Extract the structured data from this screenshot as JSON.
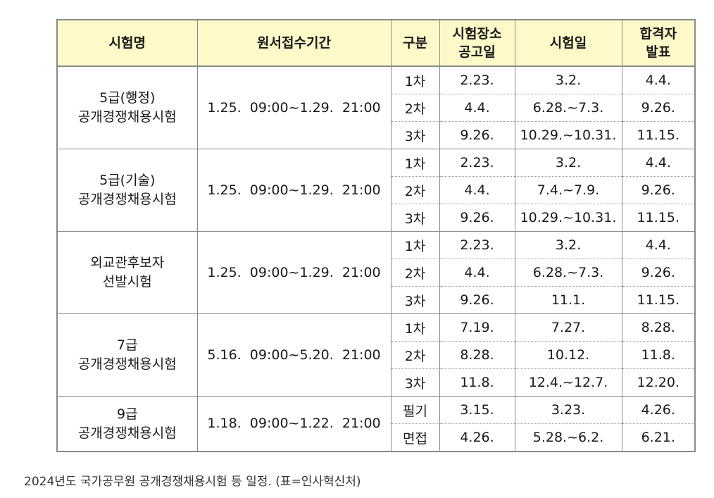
{
  "table": {
    "headers": [
      {
        "line1": "시험명",
        "line2": ""
      },
      {
        "line1": "원서접수기간",
        "line2": ""
      },
      {
        "line1": "구분",
        "line2": ""
      },
      {
        "line1": "시험장소",
        "line2": "공고일"
      },
      {
        "line1": "시험일",
        "line2": ""
      },
      {
        "line1": "합격자",
        "line2": "발표"
      }
    ],
    "groups": [
      {
        "name_line1": "5급(행정)",
        "name_line2": "공개경쟁채용시험",
        "period": "1.25.  09:00~1.29.  21:00",
        "rows": [
          {
            "stage": "1차",
            "notice": "2.23.",
            "exam": "3.2.",
            "result": "4.4."
          },
          {
            "stage": "2차",
            "notice": "4.4.",
            "exam": "6.28.~7.3.",
            "result": "9.26."
          },
          {
            "stage": "3차",
            "notice": "9.26.",
            "exam": "10.29.~10.31.",
            "result": "11.15."
          }
        ]
      },
      {
        "name_line1": "5급(기술)",
        "name_line2": "공개경쟁채용시험",
        "period": "1.25.  09:00~1.29.  21:00",
        "rows": [
          {
            "stage": "1차",
            "notice": "2.23.",
            "exam": "3.2.",
            "result": "4.4."
          },
          {
            "stage": "2차",
            "notice": "4.4.",
            "exam": "7.4.~7.9.",
            "result": "9.26."
          },
          {
            "stage": "3차",
            "notice": "9.26.",
            "exam": "10.29.~10.31.",
            "result": "11.15."
          }
        ]
      },
      {
        "name_line1": "외교관후보자",
        "name_line2": "선발시험",
        "period": "1.25.  09:00~1.29.  21:00",
        "rows": [
          {
            "stage": "1차",
            "notice": "2.23.",
            "exam": "3.2.",
            "result": "4.4."
          },
          {
            "stage": "2차",
            "notice": "4.4.",
            "exam": "6.28.~7.3.",
            "result": "9.26."
          },
          {
            "stage": "3차",
            "notice": "9.26.",
            "exam": "11.1.",
            "result": "11.15."
          }
        ]
      },
      {
        "name_line1": "7급",
        "name_line2": "공개경쟁채용시험",
        "period": "5.16.  09:00~5.20.  21:00",
        "rows": [
          {
            "stage": "1차",
            "notice": "7.19.",
            "exam": "7.27.",
            "result": "8.28."
          },
          {
            "stage": "2차",
            "notice": "8.28.",
            "exam": "10.12.",
            "result": "11.8."
          },
          {
            "stage": "3차",
            "notice": "11.8.",
            "exam": "12.4.~12.7.",
            "result": "12.20."
          }
        ]
      },
      {
        "name_line1": "9급",
        "name_line2": "공개경쟁채용시험",
        "period": "1.18.  09:00~1.22.  21:00",
        "rows": [
          {
            "stage": "필기",
            "notice": "3.15.",
            "exam": "3.23.",
            "result": "4.26."
          },
          {
            "stage": "면접",
            "notice": "4.26.",
            "exam": "5.28.~6.2.",
            "result": "6.21."
          }
        ]
      }
    ]
  },
  "caption": "2024년도 국가공무원 공개경쟁채용시험 등 일정. (표=인사혁신처)"
}
